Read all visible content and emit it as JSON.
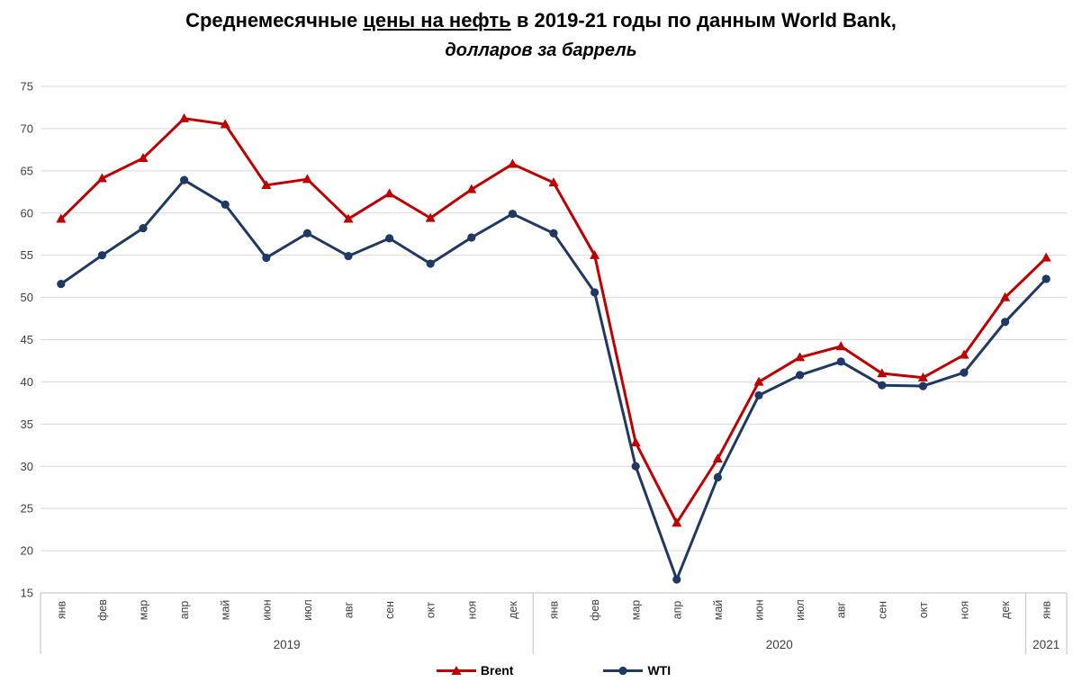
{
  "title": {
    "line1_prefix": "Среднемесячные ",
    "line1_underlined": "цены на нефть",
    "line1_suffix": " в 2019-21 годы по данным World Bank,",
    "line2": "долларов за баррель"
  },
  "chart_data": {
    "type": "line",
    "title": "Среднемесячные цены на нефть в 2019-21 годы по данным World Bank,",
    "subtitle": "долларов за баррель",
    "ylim": [
      15,
      75
    ],
    "ytick_step": 5,
    "grid": true,
    "legend_position": "bottom",
    "month_labels": [
      "янв",
      "фев",
      "мар",
      "апр",
      "май",
      "июн",
      "июл",
      "авг",
      "сен",
      "окт",
      "ноя",
      "дек"
    ],
    "years": [
      {
        "label": "2019",
        "months": 12
      },
      {
        "label": "2020",
        "months": 12
      },
      {
        "label": "2021",
        "months": 1
      }
    ],
    "series": [
      {
        "name": "Brent",
        "color": "#C00000",
        "marker": "triangle",
        "values": [
          59.3,
          64.1,
          66.5,
          71.2,
          70.5,
          63.3,
          64.0,
          59.3,
          62.3,
          59.4,
          62.8,
          65.8,
          63.6,
          55.0,
          32.8,
          23.3,
          30.9,
          40.0,
          42.9,
          44.2,
          41.0,
          40.5,
          43.2,
          50.0,
          54.7
        ]
      },
      {
        "name": "WTI",
        "color": "#1F3864",
        "marker": "circle",
        "values": [
          51.6,
          55.0,
          58.2,
          63.9,
          61.0,
          54.7,
          57.6,
          54.9,
          57.0,
          54.0,
          57.1,
          59.9,
          57.6,
          50.6,
          30.0,
          16.6,
          28.7,
          38.4,
          40.8,
          42.4,
          39.6,
          39.5,
          41.1,
          47.1,
          52.2
        ]
      }
    ],
    "colors": {
      "grid": "#D9D9D9",
      "axis": "#BFBFBF",
      "tick_text": "#404040",
      "title_text": "#000000"
    }
  }
}
